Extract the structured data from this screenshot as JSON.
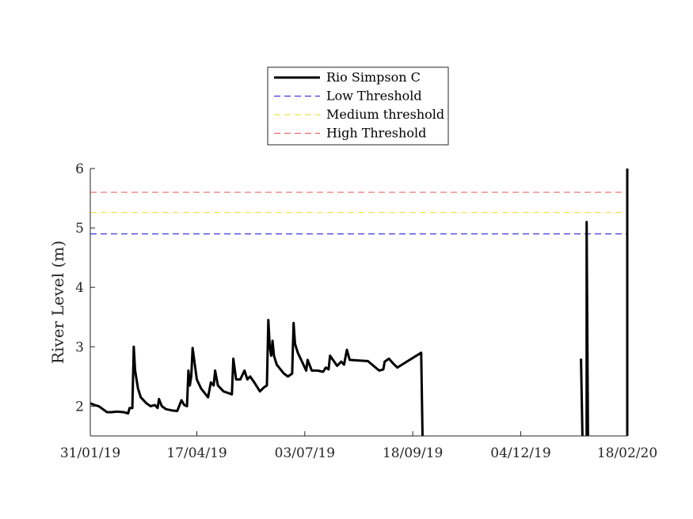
{
  "chart_data": {
    "type": "line",
    "title": "",
    "xlabel": "",
    "ylabel": "River Level (m)",
    "x_ticks": [
      "31/01/19",
      "17/04/19",
      "03/07/19",
      "18/09/19",
      "04/12/19",
      "18/02/20"
    ],
    "y_ticks": [
      "2",
      "3",
      "4",
      "5",
      "6"
    ],
    "xlim": [
      "2019-01-31",
      "2020-02-18"
    ],
    "ylim": [
      1.5,
      6
    ],
    "grid": false,
    "legend_position": "top-center",
    "series": [
      {
        "name": "Rio Simpson C",
        "color": "#000000",
        "style": "solid",
        "segments": [
          [
            [
              "2019-01-31",
              2.05
            ],
            [
              "2019-02-03",
              2.02
            ],
            [
              "2019-02-06",
              2.0
            ],
            [
              "2019-02-09",
              1.95
            ],
            [
              "2019-02-12",
              1.9
            ],
            [
              "2019-02-15",
              1.9
            ],
            [
              "2019-02-19",
              1.91
            ],
            [
              "2019-02-24",
              1.9
            ],
            [
              "2019-02-27",
              1.88
            ],
            [
              "2019-02-28",
              1.97
            ],
            [
              "2019-03-02",
              1.97
            ],
            [
              "2019-03-03",
              3.0
            ],
            [
              "2019-03-04",
              2.6
            ],
            [
              "2019-03-06",
              2.3
            ],
            [
              "2019-03-08",
              2.15
            ],
            [
              "2019-03-12",
              2.05
            ],
            [
              "2019-03-15",
              2.0
            ],
            [
              "2019-03-18",
              2.02
            ],
            [
              "2019-03-20",
              1.97
            ],
            [
              "2019-03-21",
              2.12
            ],
            [
              "2019-03-23",
              2.0
            ],
            [
              "2019-03-26",
              1.95
            ],
            [
              "2019-03-30",
              1.93
            ],
            [
              "2019-04-03",
              1.92
            ],
            [
              "2019-04-06",
              2.1
            ],
            [
              "2019-04-08",
              2.02
            ],
            [
              "2019-04-10",
              2.0
            ],
            [
              "2019-04-11",
              2.6
            ],
            [
              "2019-04-12",
              2.35
            ],
            [
              "2019-04-13",
              2.5
            ],
            [
              "2019-04-14",
              2.98
            ],
            [
              "2019-04-15",
              2.8
            ],
            [
              "2019-04-17",
              2.45
            ],
            [
              "2019-04-20",
              2.3
            ],
            [
              "2019-04-25",
              2.15
            ],
            [
              "2019-04-27",
              2.4
            ],
            [
              "2019-04-29",
              2.35
            ],
            [
              "2019-04-30",
              2.6
            ],
            [
              "2019-05-02",
              2.35
            ],
            [
              "2019-05-06",
              2.25
            ],
            [
              "2019-05-12",
              2.2
            ],
            [
              "2019-05-13",
              2.8
            ],
            [
              "2019-05-15",
              2.45
            ],
            [
              "2019-05-18",
              2.45
            ],
            [
              "2019-05-21",
              2.6
            ],
            [
              "2019-05-23",
              2.45
            ],
            [
              "2019-05-25",
              2.5
            ],
            [
              "2019-05-28",
              2.4
            ],
            [
              "2019-06-01",
              2.25
            ],
            [
              "2019-06-04",
              2.32
            ],
            [
              "2019-06-06",
              2.35
            ],
            [
              "2019-06-07",
              3.45
            ],
            [
              "2019-06-08",
              3.0
            ],
            [
              "2019-06-09",
              2.85
            ],
            [
              "2019-06-10",
              3.1
            ],
            [
              "2019-06-11",
              2.85
            ],
            [
              "2019-06-13",
              2.7
            ],
            [
              "2019-06-18",
              2.55
            ],
            [
              "2019-06-21",
              2.5
            ],
            [
              "2019-06-24",
              2.55
            ],
            [
              "2019-06-25",
              3.4
            ],
            [
              "2019-06-26",
              3.05
            ],
            [
              "2019-06-28",
              2.9
            ],
            [
              "2019-07-02",
              2.7
            ],
            [
              "2019-07-04",
              2.6
            ],
            [
              "2019-07-05",
              2.78
            ],
            [
              "2019-07-08",
              2.6
            ],
            [
              "2019-07-12",
              2.6
            ],
            [
              "2019-07-16",
              2.58
            ],
            [
              "2019-07-18",
              2.65
            ],
            [
              "2019-07-20",
              2.62
            ],
            [
              "2019-07-21",
              2.85
            ],
            [
              "2019-07-24",
              2.75
            ],
            [
              "2019-07-26",
              2.68
            ],
            [
              "2019-07-29",
              2.75
            ],
            [
              "2019-07-31",
              2.7
            ],
            [
              "2019-08-02",
              2.95
            ],
            [
              "2019-08-04",
              2.78
            ],
            [
              "2019-08-10",
              2.77
            ],
            [
              "2019-08-17",
              2.76
            ],
            [
              "2019-08-21",
              2.68
            ],
            [
              "2019-08-25",
              2.6
            ],
            [
              "2019-08-28",
              2.62
            ],
            [
              "2019-08-29",
              2.75
            ],
            [
              "2019-09-01",
              2.8
            ],
            [
              "2019-09-04",
              2.72
            ],
            [
              "2019-09-07",
              2.65
            ],
            [
              "2019-09-24",
              2.9
            ],
            [
              "2019-09-25",
              1.5
            ]
          ],
          [
            [
              "2020-01-16",
              2.8
            ],
            [
              "2020-01-17",
              1.5
            ]
          ],
          [
            [
              "2020-01-20",
              1.5
            ],
            [
              "2020-01-20",
              5.1
            ],
            [
              "2020-01-21",
              1.5
            ]
          ],
          [
            [
              "2020-02-18",
              1.5
            ],
            [
              "2020-02-18",
              6.0
            ]
          ]
        ]
      },
      {
        "name": "Low Threshold",
        "color": "#3b3bdc",
        "style": "dashed",
        "y": 4.9
      },
      {
        "name": "Medium threshold",
        "color": "#f0e24a",
        "style": "dashed",
        "y": 5.26
      },
      {
        "name": "High Threshold",
        "color": "#e86a6a",
        "style": "dashed",
        "y": 5.6
      }
    ]
  }
}
